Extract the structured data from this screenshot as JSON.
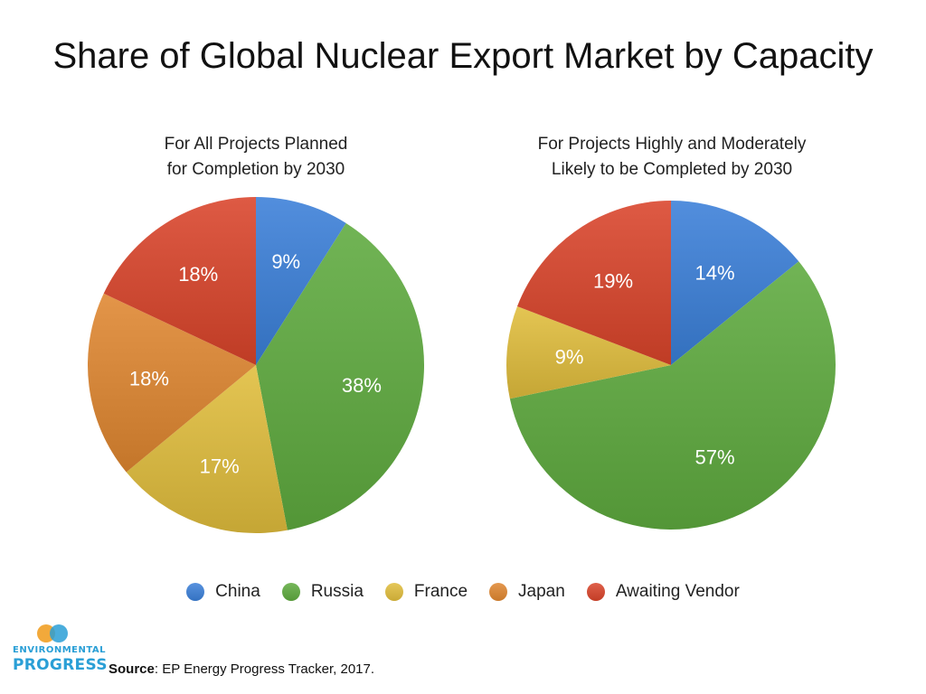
{
  "title": "Share of Global Nuclear Export Market by Capacity",
  "colors": {
    "China": "#3a7fd8",
    "Russia": "#5eaa3e",
    "France": "#e0bd3c",
    "Japan": "#df8630",
    "Awaiting Vendor": "#d9442a"
  },
  "chart_data": [
    {
      "type": "pie",
      "title": "For All Projects Planned for Completion by 2030",
      "title_lines": [
        "For All Projects Planned",
        "for Completion by 2030"
      ],
      "labels": [
        "China",
        "Russia",
        "France",
        "Japan",
        "Awaiting Vendor"
      ],
      "values": [
        9,
        38,
        17,
        18,
        18
      ],
      "data_labels": [
        "9%",
        "38%",
        "17%",
        "18%",
        "18%"
      ]
    },
    {
      "type": "pie",
      "title": "For Projects Highly and Moderately Likely to be Completed by 2030",
      "title_lines": [
        "For Projects Highly and Moderately",
        "Likely to be Completed by 2030"
      ],
      "labels": [
        "China",
        "Russia",
        "France",
        "Awaiting Vendor"
      ],
      "values": [
        14,
        57,
        9,
        19
      ],
      "data_labels": [
        "14%",
        "57%",
        "9%",
        "19%"
      ]
    }
  ],
  "legend": [
    "China",
    "Russia",
    "France",
    "Japan",
    "Awaiting Vendor"
  ],
  "logo": {
    "mark": "EP",
    "line1": "ENVIRONMENTAL",
    "line2": "PROGRESS"
  },
  "source": {
    "label": "Source",
    "text": ": EP Energy Progress Tracker, 2017."
  }
}
